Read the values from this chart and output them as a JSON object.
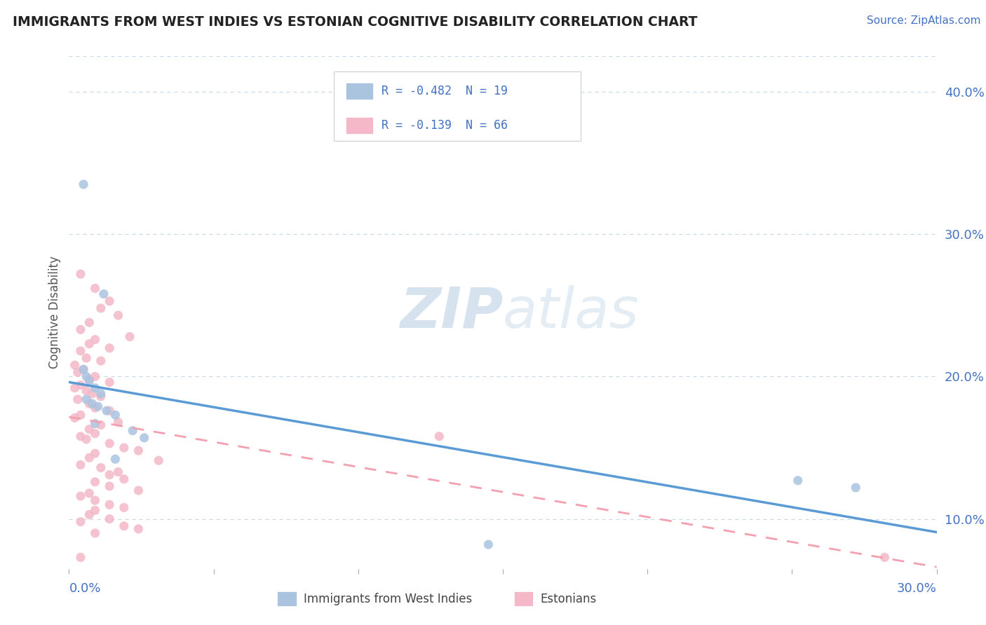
{
  "title": "IMMIGRANTS FROM WEST INDIES VS ESTONIAN COGNITIVE DISABILITY CORRELATION CHART",
  "source": "Source: ZipAtlas.com",
  "ylabel": "Cognitive Disability",
  "y_ticks": [
    0.1,
    0.2,
    0.3,
    0.4
  ],
  "y_tick_labels": [
    "10.0%",
    "20.0%",
    "30.0%",
    "40.0%"
  ],
  "xlim": [
    0.0,
    0.3
  ],
  "ylim": [
    0.065,
    0.425
  ],
  "legend1_label": "R = -0.482  N = 19",
  "legend2_label": "R = -0.139  N = 66",
  "bottom_label1": "Immigrants from West Indies",
  "bottom_label2": "Estonians",
  "blue_color": "#5b9bd5",
  "pink_color": "#f4a0b0",
  "blue_scatter_color": "#aac4e0",
  "pink_scatter_color": "#f4b8c8",
  "background_color": "#ffffff",
  "grid_color": "#c8d8e8",
  "title_color": "#222222",
  "axis_color": "#4472c4",
  "watermark_zip": "ZIP",
  "watermark_atlas": "atlas",
  "blue_points": [
    [
      0.005,
      0.335
    ],
    [
      0.012,
      0.258
    ],
    [
      0.005,
      0.205
    ],
    [
      0.006,
      0.2
    ],
    [
      0.007,
      0.197
    ],
    [
      0.009,
      0.192
    ],
    [
      0.011,
      0.188
    ],
    [
      0.006,
      0.184
    ],
    [
      0.008,
      0.181
    ],
    [
      0.01,
      0.179
    ],
    [
      0.013,
      0.176
    ],
    [
      0.016,
      0.173
    ],
    [
      0.009,
      0.167
    ],
    [
      0.022,
      0.162
    ],
    [
      0.026,
      0.157
    ],
    [
      0.016,
      0.142
    ],
    [
      0.252,
      0.127
    ],
    [
      0.272,
      0.122
    ],
    [
      0.145,
      0.082
    ]
  ],
  "pink_points": [
    [
      0.004,
      0.272
    ],
    [
      0.009,
      0.262
    ],
    [
      0.014,
      0.253
    ],
    [
      0.011,
      0.248
    ],
    [
      0.017,
      0.243
    ],
    [
      0.007,
      0.238
    ],
    [
      0.004,
      0.233
    ],
    [
      0.021,
      0.228
    ],
    [
      0.009,
      0.226
    ],
    [
      0.007,
      0.223
    ],
    [
      0.014,
      0.22
    ],
    [
      0.004,
      0.218
    ],
    [
      0.006,
      0.213
    ],
    [
      0.011,
      0.211
    ],
    [
      0.002,
      0.208
    ],
    [
      0.005,
      0.205
    ],
    [
      0.003,
      0.203
    ],
    [
      0.009,
      0.2
    ],
    [
      0.007,
      0.198
    ],
    [
      0.014,
      0.196
    ],
    [
      0.004,
      0.194
    ],
    [
      0.002,
      0.192
    ],
    [
      0.006,
      0.19
    ],
    [
      0.008,
      0.188
    ],
    [
      0.011,
      0.186
    ],
    [
      0.003,
      0.184
    ],
    [
      0.007,
      0.181
    ],
    [
      0.009,
      0.178
    ],
    [
      0.014,
      0.176
    ],
    [
      0.004,
      0.173
    ],
    [
      0.002,
      0.171
    ],
    [
      0.017,
      0.168
    ],
    [
      0.011,
      0.166
    ],
    [
      0.007,
      0.163
    ],
    [
      0.009,
      0.16
    ],
    [
      0.004,
      0.158
    ],
    [
      0.006,
      0.156
    ],
    [
      0.014,
      0.153
    ],
    [
      0.019,
      0.15
    ],
    [
      0.024,
      0.148
    ],
    [
      0.009,
      0.146
    ],
    [
      0.007,
      0.143
    ],
    [
      0.031,
      0.141
    ],
    [
      0.004,
      0.138
    ],
    [
      0.011,
      0.136
    ],
    [
      0.017,
      0.133
    ],
    [
      0.014,
      0.131
    ],
    [
      0.019,
      0.128
    ],
    [
      0.009,
      0.126
    ],
    [
      0.014,
      0.123
    ],
    [
      0.024,
      0.12
    ],
    [
      0.007,
      0.118
    ],
    [
      0.004,
      0.116
    ],
    [
      0.009,
      0.113
    ],
    [
      0.014,
      0.11
    ],
    [
      0.019,
      0.108
    ],
    [
      0.009,
      0.106
    ],
    [
      0.007,
      0.103
    ],
    [
      0.014,
      0.1
    ],
    [
      0.004,
      0.098
    ],
    [
      0.019,
      0.095
    ],
    [
      0.024,
      0.093
    ],
    [
      0.009,
      0.09
    ],
    [
      0.128,
      0.158
    ],
    [
      0.004,
      0.073
    ],
    [
      0.282,
      0.073
    ]
  ]
}
